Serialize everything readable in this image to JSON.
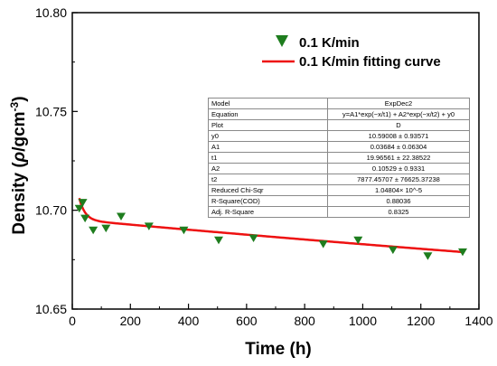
{
  "chart_data": {
    "type": "scatter",
    "xlabel": "Time (h)",
    "ylabel_text": "Density (",
    "ylabel_symbol": "ρ",
    "ylabel_unit": "/gcm",
    "ylabel_exp": "-3",
    "ylabel_close": ")",
    "xlim": [
      0,
      1400
    ],
    "ylim": [
      10.65,
      10.8
    ],
    "xticks": [
      "0",
      "200",
      "400",
      "600",
      "800",
      "1000",
      "1200",
      "1400"
    ],
    "yticks": [
      "10.65",
      "10.70",
      "10.75",
      "10.80"
    ],
    "legend_position": "top-right",
    "series": [
      {
        "name": "0.1 K/min",
        "marker": "triangle-down",
        "color": "#1e7d1e",
        "x": [
          24,
          36,
          44,
          72,
          116,
          168,
          264,
          384,
          504,
          624,
          864,
          984,
          1104,
          1224,
          1344
        ],
        "y": [
          10.701,
          10.704,
          10.696,
          10.69,
          10.691,
          10.697,
          10.692,
          10.69,
          10.685,
          10.686,
          10.683,
          10.685,
          10.68,
          10.677,
          10.679
        ]
      },
      {
        "name": "0.1 K/min fitting curve",
        "marker": "line",
        "color": "#ee1111",
        "model": {
          "y0": 10.59008,
          "A1": 0.03684,
          "t1": 19.96561,
          "A2": 0.10529,
          "t2": 7877.45707
        },
        "x_range": [
          24,
          1344
        ]
      }
    ],
    "fit_table": [
      {
        "key": "Model",
        "value": "ExpDec2"
      },
      {
        "key": "Equation",
        "value": "y=A1*exp(−x/t1) + A2*exp(−x/t2) + y0"
      },
      {
        "key": "Plot",
        "value": "D"
      },
      {
        "key": "y0",
        "value": "10.59008 ± 0.93571"
      },
      {
        "key": "A1",
        "value": "0.03684 ± 0.06304"
      },
      {
        "key": "t1",
        "value": "19.96561 ± 22.38522"
      },
      {
        "key": "A2",
        "value": "0.10529 ± 0.9331"
      },
      {
        "key": "t2",
        "value": "7877.45707 ± 76625.37238"
      },
      {
        "key": "Reduced Chi-Sqr",
        "value": "1.04804× 10^-5"
      },
      {
        "key": "R-Square(COD)",
        "value": "0.88036"
      },
      {
        "key": "Adj. R-Square",
        "value": "0.8325"
      }
    ]
  }
}
